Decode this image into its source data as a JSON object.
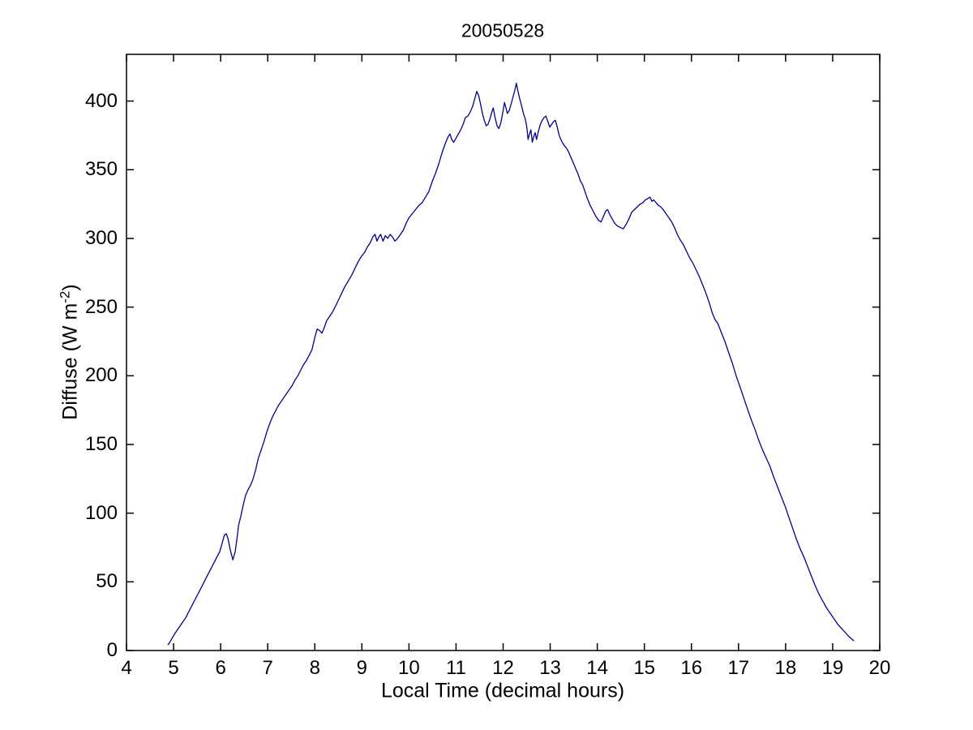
{
  "figure": {
    "background": "#ffffff"
  },
  "chart_data": {
    "type": "line",
    "title": "20050528",
    "xlabel": "Local Time (decimal hours)",
    "ylabel": "Diffuse (W m^-2)",
    "ylabel_parts": [
      "Diffuse (W m",
      "-2",
      ")"
    ],
    "xlim": [
      4,
      20
    ],
    "ylim": [
      0,
      434
    ],
    "x_ticks": [
      4,
      5,
      6,
      7,
      8,
      9,
      10,
      11,
      12,
      13,
      14,
      15,
      16,
      17,
      18,
      19,
      20
    ],
    "y_ticks": [
      0,
      50,
      100,
      150,
      200,
      250,
      300,
      350,
      400
    ],
    "grid": false,
    "legend": "none",
    "line_color": "#00008B",
    "axis_color": "#000000",
    "series": [
      {
        "name": "diffuse-irradiance",
        "points": [
          [
            4.88,
            4
          ],
          [
            4.92,
            6
          ],
          [
            4.97,
            9
          ],
          [
            5.02,
            12
          ],
          [
            5.08,
            15
          ],
          [
            5.14,
            18
          ],
          [
            5.2,
            21
          ],
          [
            5.26,
            24
          ],
          [
            5.32,
            28
          ],
          [
            5.38,
            32
          ],
          [
            5.44,
            36
          ],
          [
            5.5,
            40
          ],
          [
            5.56,
            44
          ],
          [
            5.62,
            48
          ],
          [
            5.68,
            52
          ],
          [
            5.74,
            56
          ],
          [
            5.8,
            60
          ],
          [
            5.86,
            64
          ],
          [
            5.92,
            68
          ],
          [
            5.98,
            72
          ],
          [
            6.04,
            79
          ],
          [
            6.08,
            84
          ],
          [
            6.12,
            85
          ],
          [
            6.16,
            81
          ],
          [
            6.2,
            74
          ],
          [
            6.26,
            66
          ],
          [
            6.31,
            72
          ],
          [
            6.35,
            82
          ],
          [
            6.38,
            91
          ],
          [
            6.43,
            98
          ],
          [
            6.48,
            106
          ],
          [
            6.53,
            113
          ],
          [
            6.58,
            117
          ],
          [
            6.63,
            120
          ],
          [
            6.68,
            124
          ],
          [
            6.74,
            131
          ],
          [
            6.8,
            140
          ],
          [
            6.86,
            146
          ],
          [
            6.92,
            152
          ],
          [
            6.98,
            159
          ],
          [
            7.04,
            165
          ],
          [
            7.1,
            170
          ],
          [
            7.16,
            174
          ],
          [
            7.22,
            178
          ],
          [
            7.28,
            181
          ],
          [
            7.34,
            184
          ],
          [
            7.4,
            187
          ],
          [
            7.46,
            190
          ],
          [
            7.52,
            193
          ],
          [
            7.58,
            197
          ],
          [
            7.64,
            200
          ],
          [
            7.7,
            204
          ],
          [
            7.76,
            208
          ],
          [
            7.82,
            211
          ],
          [
            7.88,
            215
          ],
          [
            7.94,
            219
          ],
          [
            8.0,
            228
          ],
          [
            8.05,
            234
          ],
          [
            8.1,
            233
          ],
          [
            8.15,
            231
          ],
          [
            8.2,
            235
          ],
          [
            8.25,
            240
          ],
          [
            8.31,
            243
          ],
          [
            8.37,
            246
          ],
          [
            8.43,
            250
          ],
          [
            8.5,
            255
          ],
          [
            8.57,
            260
          ],
          [
            8.64,
            265
          ],
          [
            8.71,
            269
          ],
          [
            8.78,
            273
          ],
          [
            8.85,
            278
          ],
          [
            8.92,
            283
          ],
          [
            8.99,
            287
          ],
          [
            9.06,
            290
          ],
          [
            9.12,
            294
          ],
          [
            9.18,
            297
          ],
          [
            9.23,
            301
          ],
          [
            9.28,
            303
          ],
          [
            9.32,
            298
          ],
          [
            9.36,
            301
          ],
          [
            9.4,
            303
          ],
          [
            9.45,
            298
          ],
          [
            9.5,
            302
          ],
          [
            9.55,
            300
          ],
          [
            9.6,
            303
          ],
          [
            9.65,
            301
          ],
          [
            9.7,
            298
          ],
          [
            9.76,
            300
          ],
          [
            9.82,
            303
          ],
          [
            9.88,
            306
          ],
          [
            9.94,
            311
          ],
          [
            10.0,
            315
          ],
          [
            10.07,
            318
          ],
          [
            10.14,
            321
          ],
          [
            10.21,
            324
          ],
          [
            10.28,
            326
          ],
          [
            10.35,
            330
          ],
          [
            10.42,
            334
          ],
          [
            10.49,
            341
          ],
          [
            10.56,
            347
          ],
          [
            10.63,
            354
          ],
          [
            10.7,
            362
          ],
          [
            10.77,
            369
          ],
          [
            10.83,
            374
          ],
          [
            10.87,
            376
          ],
          [
            10.91,
            372
          ],
          [
            10.95,
            370
          ],
          [
            11.0,
            373
          ],
          [
            11.05,
            376
          ],
          [
            11.1,
            379
          ],
          [
            11.15,
            383
          ],
          [
            11.2,
            388
          ],
          [
            11.25,
            389
          ],
          [
            11.3,
            392
          ],
          [
            11.35,
            396
          ],
          [
            11.4,
            402
          ],
          [
            11.44,
            407
          ],
          [
            11.48,
            404
          ],
          [
            11.52,
            398
          ],
          [
            11.56,
            391
          ],
          [
            11.6,
            386
          ],
          [
            11.64,
            382
          ],
          [
            11.68,
            383
          ],
          [
            11.72,
            387
          ],
          [
            11.76,
            392
          ],
          [
            11.79,
            395
          ],
          [
            11.83,
            388
          ],
          [
            11.87,
            382
          ],
          [
            11.91,
            380
          ],
          [
            11.95,
            384
          ],
          [
            11.99,
            391
          ],
          [
            12.03,
            399
          ],
          [
            12.06,
            395
          ],
          [
            12.09,
            391
          ],
          [
            12.13,
            393
          ],
          [
            12.17,
            398
          ],
          [
            12.21,
            403
          ],
          [
            12.25,
            408
          ],
          [
            12.28,
            413
          ],
          [
            12.31,
            408
          ],
          [
            12.35,
            402
          ],
          [
            12.39,
            397
          ],
          [
            12.43,
            391
          ],
          [
            12.47,
            387
          ],
          [
            12.5,
            382
          ],
          [
            12.53,
            372
          ],
          [
            12.56,
            376
          ],
          [
            12.59,
            379
          ],
          [
            12.62,
            370
          ],
          [
            12.65,
            374
          ],
          [
            12.68,
            377
          ],
          [
            12.71,
            372
          ],
          [
            12.75,
            378
          ],
          [
            12.79,
            383
          ],
          [
            12.83,
            386
          ],
          [
            12.87,
            388
          ],
          [
            12.91,
            389
          ],
          [
            12.95,
            385
          ],
          [
            12.99,
            381
          ],
          [
            13.03,
            383
          ],
          [
            13.07,
            385
          ],
          [
            13.11,
            386
          ],
          [
            13.15,
            381
          ],
          [
            13.19,
            375
          ],
          [
            13.24,
            371
          ],
          [
            13.29,
            368
          ],
          [
            13.34,
            366
          ],
          [
            13.39,
            363
          ],
          [
            13.44,
            359
          ],
          [
            13.49,
            355
          ],
          [
            13.54,
            351
          ],
          [
            13.59,
            347
          ],
          [
            13.64,
            342
          ],
          [
            13.69,
            339
          ],
          [
            13.74,
            334
          ],
          [
            13.79,
            329
          ],
          [
            13.85,
            324
          ],
          [
            13.91,
            320
          ],
          [
            13.97,
            316
          ],
          [
            14.03,
            313
          ],
          [
            14.08,
            312
          ],
          [
            14.13,
            316
          ],
          [
            14.18,
            320
          ],
          [
            14.22,
            321
          ],
          [
            14.27,
            317
          ],
          [
            14.32,
            314
          ],
          [
            14.37,
            311
          ],
          [
            14.43,
            309
          ],
          [
            14.49,
            308
          ],
          [
            14.55,
            307
          ],
          [
            14.61,
            310
          ],
          [
            14.67,
            314
          ],
          [
            14.73,
            319
          ],
          [
            14.79,
            321
          ],
          [
            14.85,
            323
          ],
          [
            14.91,
            325
          ],
          [
            14.97,
            326
          ],
          [
            15.02,
            328
          ],
          [
            15.07,
            329
          ],
          [
            15.12,
            330
          ],
          [
            15.16,
            327
          ],
          [
            15.2,
            328
          ],
          [
            15.25,
            326
          ],
          [
            15.3,
            324
          ],
          [
            15.35,
            323
          ],
          [
            15.4,
            321
          ],
          [
            15.46,
            318
          ],
          [
            15.52,
            315
          ],
          [
            15.58,
            312
          ],
          [
            15.64,
            308
          ],
          [
            15.7,
            303
          ],
          [
            15.76,
            299
          ],
          [
            15.82,
            296
          ],
          [
            15.89,
            291
          ],
          [
            15.96,
            286
          ],
          [
            16.03,
            282
          ],
          [
            16.1,
            277
          ],
          [
            16.17,
            272
          ],
          [
            16.24,
            266
          ],
          [
            16.31,
            260
          ],
          [
            16.38,
            253
          ],
          [
            16.44,
            246
          ],
          [
            16.5,
            241
          ],
          [
            16.56,
            238
          ],
          [
            16.63,
            232
          ],
          [
            16.71,
            225
          ],
          [
            16.79,
            217
          ],
          [
            16.87,
            209
          ],
          [
            16.95,
            200
          ],
          [
            17.03,
            192
          ],
          [
            17.11,
            184
          ],
          [
            17.19,
            176
          ],
          [
            17.27,
            168
          ],
          [
            17.35,
            161
          ],
          [
            17.43,
            153
          ],
          [
            17.51,
            146
          ],
          [
            17.59,
            140
          ],
          [
            17.67,
            134
          ],
          [
            17.75,
            126
          ],
          [
            17.83,
            119
          ],
          [
            17.91,
            112
          ],
          [
            17.99,
            105
          ],
          [
            18.07,
            97
          ],
          [
            18.15,
            89
          ],
          [
            18.23,
            81
          ],
          [
            18.31,
            74
          ],
          [
            18.39,
            68
          ],
          [
            18.47,
            61
          ],
          [
            18.55,
            54
          ],
          [
            18.63,
            47
          ],
          [
            18.71,
            41
          ],
          [
            18.79,
            36
          ],
          [
            18.87,
            31
          ],
          [
            18.95,
            27
          ],
          [
            19.03,
            23
          ],
          [
            19.11,
            19
          ],
          [
            19.19,
            16
          ],
          [
            19.27,
            13
          ],
          [
            19.35,
            10
          ],
          [
            19.42,
            8
          ],
          [
            19.45,
            7
          ]
        ]
      }
    ]
  }
}
